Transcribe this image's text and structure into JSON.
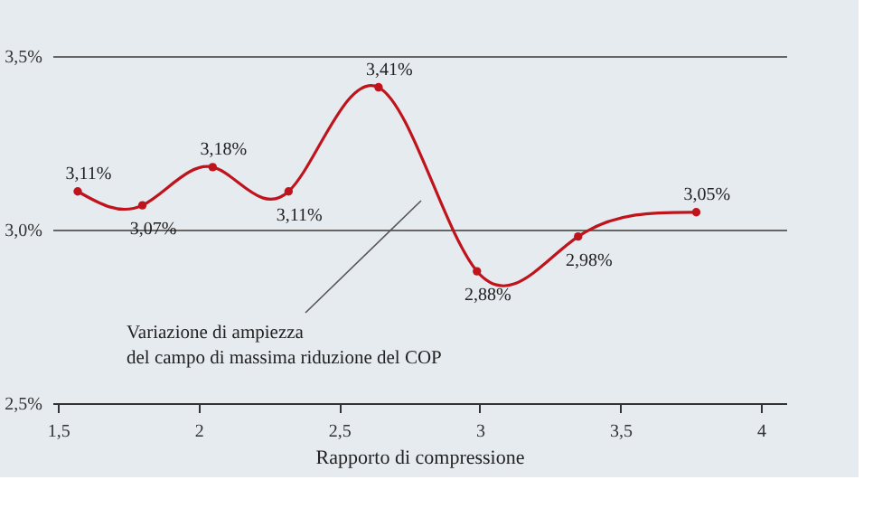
{
  "chart_data": {
    "type": "line",
    "xlabel": "Rapporto di compressione",
    "x": [
      1.57,
      1.8,
      2.05,
      2.32,
      2.64,
      2.99,
      3.35,
      3.77
    ],
    "series": [
      {
        "color": "#c0141c",
        "values": [
          3.11,
          3.07,
          3.18,
          3.11,
          3.41,
          2.88,
          2.98,
          3.05
        ],
        "value_labels": [
          "3,11%",
          "3,07%",
          "3,18%",
          "3,11%",
          "3,41%",
          "2,88%",
          "2,98%",
          "3,05%"
        ]
      }
    ],
    "xlim": [
      1.48,
      4.09
    ],
    "ylim": [
      2.5,
      3.5
    ],
    "xticks": [
      {
        "value": 1.5,
        "label": "1,5"
      },
      2,
      {
        "value": 2.5,
        "label": "2,5"
      },
      3,
      {
        "value": 3.5,
        "label": "3,5"
      },
      4
    ],
    "yticks": [
      {
        "value": 2.5,
        "label": "2,5%"
      },
      {
        "value": 3.0,
        "label": "3,0%"
      },
      {
        "value": 3.5,
        "label": "3,5%"
      }
    ],
    "grid": "y",
    "marker": "circle",
    "line_style": "solid",
    "annotations": [
      "Variazione di ampiezza\ndel campo di massima riduzione del COP"
    ]
  }
}
